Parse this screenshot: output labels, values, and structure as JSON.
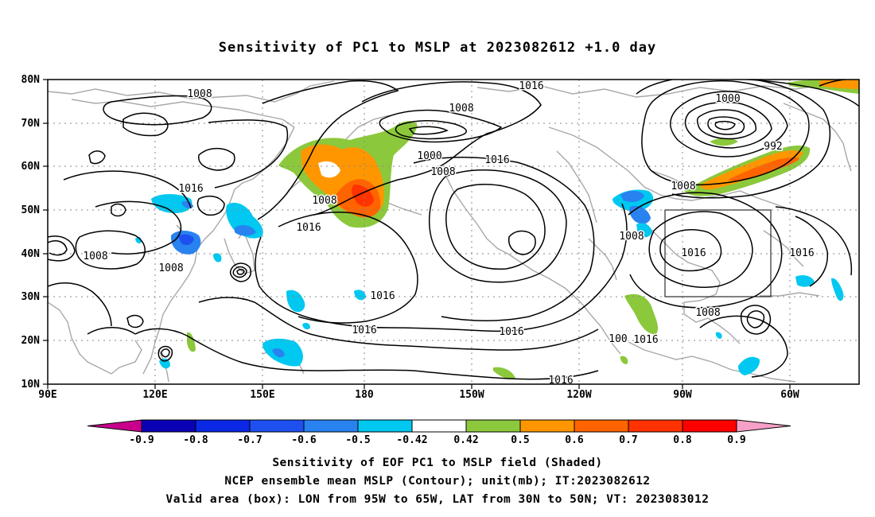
{
  "title": "Sensitivity of PC1 to MSLP at 2023082612 +1.0 day",
  "lat_labels": [
    "80N",
    "70N",
    "60N",
    "50N",
    "40N",
    "30N",
    "20N",
    "10N"
  ],
  "lon_labels": [
    "90E",
    "120E",
    "150E",
    "180",
    "150W",
    "120W",
    "90W",
    "60W"
  ],
  "contour_labels": [
    {
      "text": "1008"
    },
    {
      "text": "1016"
    },
    {
      "text": "1008"
    },
    {
      "text": "1000"
    },
    {
      "text": "1008"
    },
    {
      "text": "1016"
    },
    {
      "text": "1000"
    },
    {
      "text": "992"
    },
    {
      "text": "1008"
    },
    {
      "text": "1016"
    },
    {
      "text": "1008"
    },
    {
      "text": "1016"
    },
    {
      "text": "1008"
    },
    {
      "text": "1008"
    },
    {
      "text": "1016"
    },
    {
      "text": "1016"
    },
    {
      "text": "1016"
    },
    {
      "text": "1016"
    },
    {
      "text": "1016"
    },
    {
      "text": "1008"
    },
    {
      "text": "1016"
    },
    {
      "text": "1008"
    },
    {
      "text": "100"
    },
    {
      "text": "1016"
    }
  ],
  "colorbar": {
    "ticks": [
      "-0.9",
      "-0.8",
      "-0.7",
      "-0.6",
      "-0.5",
      "-0.42",
      "0.42",
      "0.5",
      "0.6",
      "0.7",
      "0.8",
      "0.9"
    ],
    "colors": [
      "#c8008c",
      "#0a00b4",
      "#0a28e6",
      "#1e50f0",
      "#2882f0",
      "#00c8f0",
      "#ffffff",
      "#8cc83c",
      "#ff9600",
      "#ff6400",
      "#ff3200",
      "#ff0000",
      "#f6a0c8"
    ]
  },
  "valid_box": {
    "lon_from": "95W",
    "lon_to": "65W",
    "lat_from": "30N",
    "lat_to": "50N"
  },
  "captions": [
    "Sensitivity of EOF PC1 to MSLP field (Shaded)",
    "NCEP ensemble mean MSLP (Contour); unit(mb); IT:2023082612",
    "Valid area (box): LON from 95W to 65W, LAT from 30N to 50N; VT: 2023083012"
  ]
}
